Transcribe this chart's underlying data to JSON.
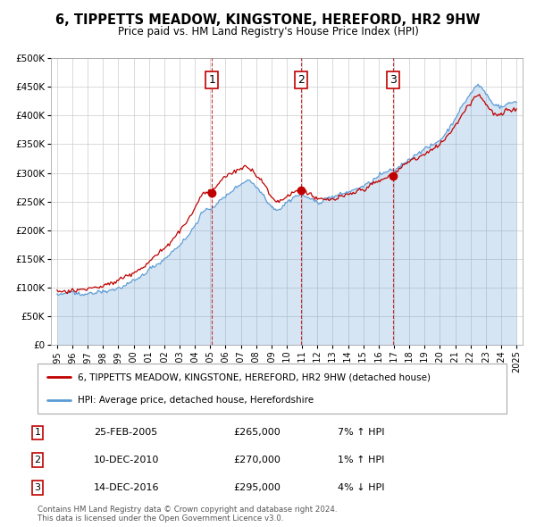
{
  "title": "6, TIPPETTS MEADOW, KINGSTONE, HEREFORD, HR2 9HW",
  "subtitle": "Price paid vs. HM Land Registry's House Price Index (HPI)",
  "red_label": "6, TIPPETTS MEADOW, KINGSTONE, HEREFORD, HR2 9HW (detached house)",
  "blue_label": "HPI: Average price, detached house, Herefordshire",
  "sales": [
    {
      "num": 1,
      "date": "25-FEB-2005",
      "price": "£265,000",
      "pct": "7%",
      "dir": "↑",
      "x_year": 2005.12
    },
    {
      "num": 2,
      "date": "10-DEC-2010",
      "price": "£270,000",
      "pct": "1%",
      "dir": "↑",
      "x_year": 2010.94
    },
    {
      "num": 3,
      "date": "14-DEC-2016",
      "price": "£295,000",
      "pct": "4%",
      "dir": "↓",
      "x_year": 2016.95
    }
  ],
  "footer": "Contains HM Land Registry data © Crown copyright and database right 2024.\nThis data is licensed under the Open Government Licence v3.0.",
  "ylim": [
    0,
    500000
  ],
  "xlim_start": 1994.6,
  "xlim_end": 2025.4,
  "sale_prices": [
    265000,
    270000,
    295000
  ],
  "hpi_anchors_x": [
    1995.0,
    1996.0,
    1997.0,
    1998.0,
    1999.0,
    2000.0,
    2001.0,
    2002.0,
    2003.0,
    2004.0,
    2004.5,
    2005.12,
    2005.5,
    2006.0,
    2007.0,
    2007.5,
    2008.0,
    2008.5,
    2009.0,
    2009.5,
    2010.0,
    2010.94,
    2011.5,
    2012.0,
    2013.0,
    2014.0,
    2015.0,
    2016.0,
    2016.95,
    2017.5,
    2018.0,
    2019.0,
    2020.0,
    2020.5,
    2021.0,
    2021.5,
    2022.0,
    2022.5,
    2023.0,
    2023.5,
    2024.0,
    2024.5,
    2025.0
  ],
  "hpi_anchors_y": [
    87000,
    89000,
    93000,
    99000,
    108000,
    120000,
    138000,
    158000,
    183000,
    218000,
    240000,
    247000,
    255000,
    268000,
    290000,
    298000,
    285000,
    270000,
    248000,
    244000,
    253000,
    267000,
    262000,
    255000,
    258000,
    268000,
    278000,
    295000,
    307000,
    318000,
    328000,
    345000,
    360000,
    375000,
    395000,
    415000,
    435000,
    448000,
    435000,
    418000,
    415000,
    420000,
    425000
  ]
}
